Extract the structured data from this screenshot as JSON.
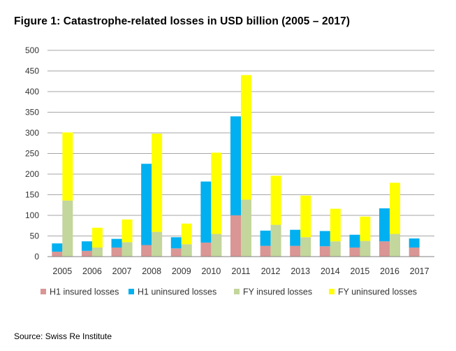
{
  "title": "Figure 1: Catastrophe-related losses in USD billion (2005 – 2017)",
  "source": "Source: Swiss Re Institute",
  "chart_data": {
    "type": "bar",
    "title": "Figure 1: Catastrophe-related losses in USD billion (2005 – 2017)",
    "xlabel": "",
    "ylabel": "",
    "ylim": [
      0,
      500
    ],
    "yticks": [
      0,
      50,
      100,
      150,
      200,
      250,
      300,
      350,
      400,
      450,
      500
    ],
    "grid": true,
    "legend_position": "bottom",
    "stacking": "H1 and FY shown as separate stacked bars per year",
    "categories": [
      "2005",
      "2006",
      "2007",
      "2008",
      "2009",
      "2010",
      "2011",
      "2012",
      "2013",
      "2014",
      "2015",
      "2016",
      "2017"
    ],
    "series": [
      {
        "name": "H1 insured losses",
        "group": "H1",
        "color": "#d99694",
        "values": [
          12,
          14,
          22,
          28,
          20,
          34,
          100,
          26,
          26,
          25,
          22,
          37,
          22
        ]
      },
      {
        "name": "H1 uninsured losses",
        "group": "H1",
        "color": "#00b0f0",
        "values": [
          20,
          23,
          21,
          197,
          27,
          148,
          240,
          37,
          39,
          37,
          31,
          80,
          22
        ]
      },
      {
        "name": "FY insured losses",
        "group": "FY",
        "color": "#c3d69b",
        "values": [
          136,
          22,
          35,
          60,
          30,
          55,
          138,
          77,
          47,
          37,
          38,
          55,
          null
        ]
      },
      {
        "name": "FY uninsured losses",
        "group": "FY",
        "color": "#ffff00",
        "values": [
          165,
          48,
          55,
          238,
          50,
          197,
          302,
          119,
          101,
          79,
          59,
          124,
          null
        ]
      }
    ]
  }
}
